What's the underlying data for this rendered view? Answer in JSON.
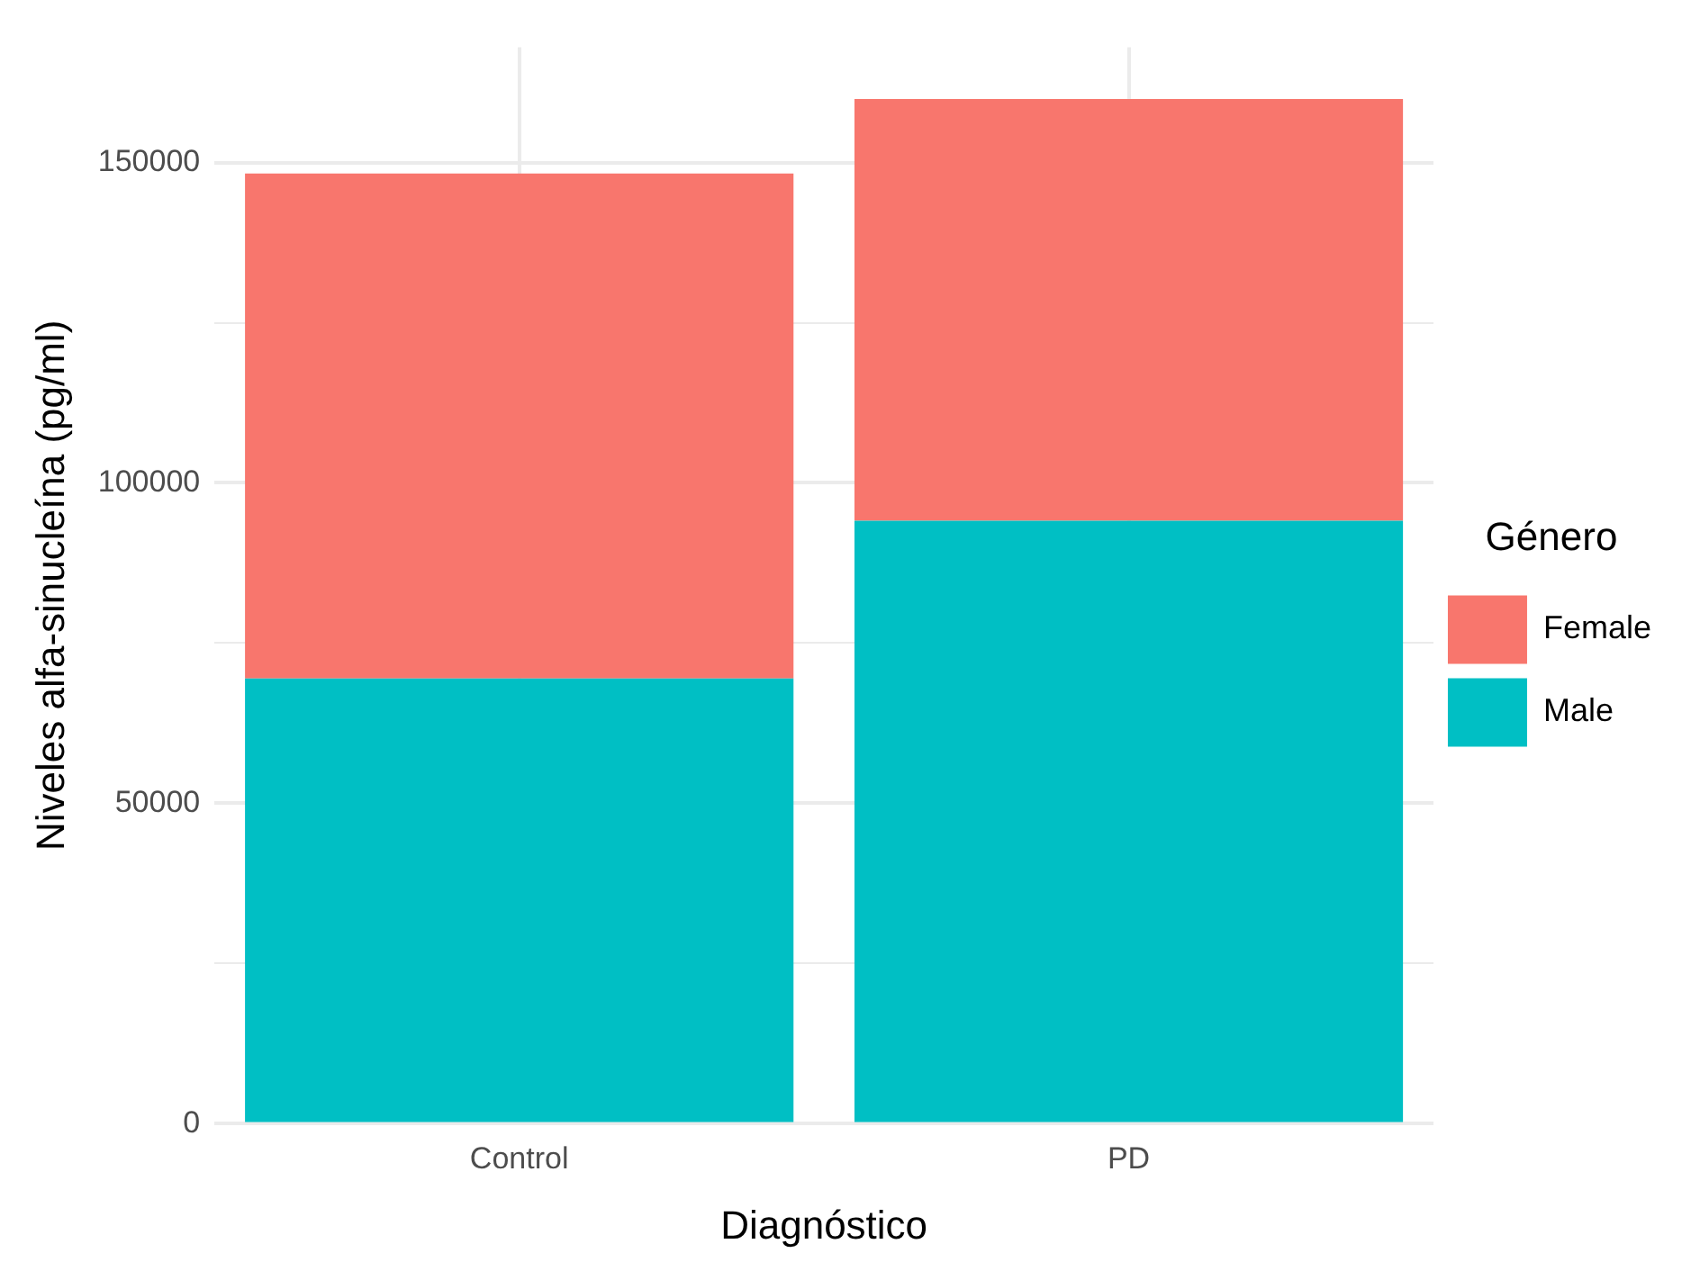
{
  "chart_data": {
    "type": "bar",
    "stacked": true,
    "xlabel": "Diagnóstico",
    "ylabel": "Niveles alfa-sinucleína (pg/ml)",
    "legend_title": "Género",
    "categories": [
      "Control",
      "PD"
    ],
    "series": [
      {
        "name": "Male",
        "color": "#00bfc4",
        "values": [
          69500,
          94100
        ]
      },
      {
        "name": "Female",
        "color": "#f8766d",
        "values": [
          78800,
          65800
        ]
      }
    ],
    "ylim": [
      0,
      168000
    ],
    "yticks": [
      0,
      {
        "value": 25000,
        "label": null
      },
      50000,
      {
        "value": 75000,
        "label": null
      },
      100000,
      {
        "value": 125000,
        "label": null
      },
      150000
    ],
    "grid": true,
    "legend": "right"
  }
}
